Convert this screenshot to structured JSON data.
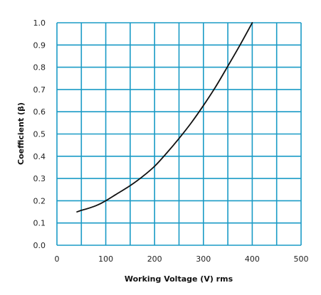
{
  "chart_data": {
    "type": "line",
    "xlabel": "Working Voltage (V) rms",
    "ylabel": "Coefficient (β)",
    "xlim": [
      0,
      500
    ],
    "ylim": [
      0.0,
      1.0
    ],
    "x_ticks": [
      "0",
      "100",
      "200",
      "300",
      "400",
      "500"
    ],
    "y_ticks": [
      "0.0",
      "0.1",
      "0.2",
      "0.3",
      "0.4",
      "0.5",
      "0.6",
      "0.7",
      "0.8",
      "0.9",
      "1.0"
    ],
    "grid": true,
    "grid_color": "#1a9bc6",
    "line_color": "#111111",
    "series": [
      {
        "x": [
          41,
          50,
          60,
          70,
          80,
          90,
          100,
          120,
          150,
          175,
          200,
          225,
          250,
          275,
          300,
          325,
          350,
          375,
          400
        ],
        "values": [
          0.15,
          0.157,
          0.163,
          0.17,
          0.178,
          0.188,
          0.2,
          0.227,
          0.268,
          0.308,
          0.355,
          0.415,
          0.48,
          0.55,
          0.628,
          0.712,
          0.805,
          0.9,
          1.0
        ]
      }
    ]
  }
}
